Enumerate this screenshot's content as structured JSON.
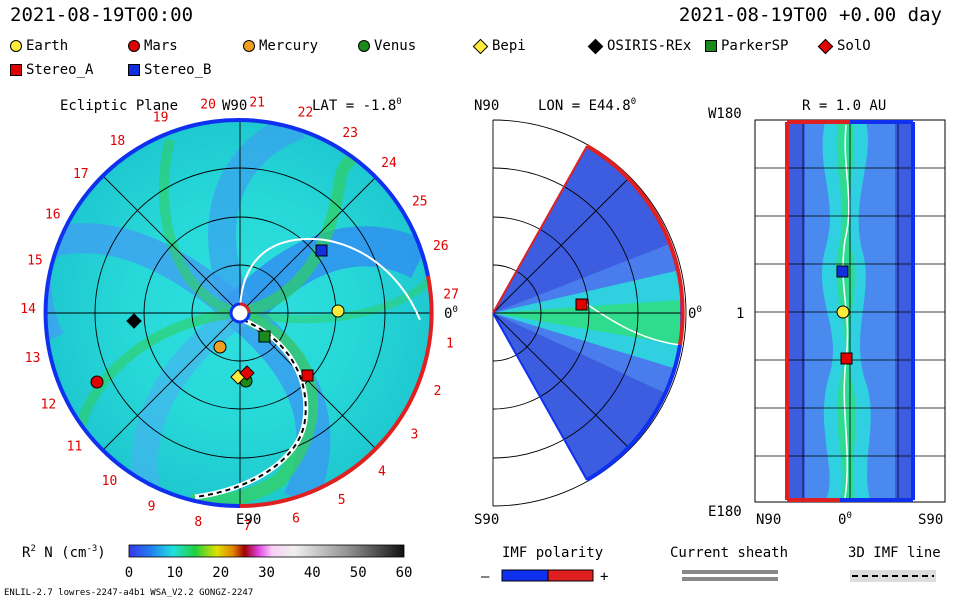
{
  "header": {
    "left_time": "2021-08-19T00:00",
    "right_time": "2021-08-19T00 +0.00 day"
  },
  "legend": {
    "items": [
      {
        "label": "Earth",
        "shape": "circle",
        "color": "#ffeb3b"
      },
      {
        "label": "Mars",
        "shape": "circle",
        "color": "#e00000"
      },
      {
        "label": "Mercury",
        "shape": "circle",
        "color": "#f0a020"
      },
      {
        "label": "Venus",
        "shape": "circle",
        "color": "#1a8a1a"
      },
      {
        "label": "Bepi",
        "shape": "diamond",
        "color": "#ffeb3b"
      },
      {
        "label": "OSIRIS-REx",
        "shape": "diamond",
        "color": "#000000"
      },
      {
        "label": "ParkerSP",
        "shape": "square",
        "color": "#1a8a1a"
      },
      {
        "label": "SolO",
        "shape": "diamond",
        "color": "#e00000"
      },
      {
        "label": "Stereo_A",
        "shape": "square",
        "color": "#e00000"
      },
      {
        "label": "Stereo_B",
        "shape": "square",
        "color": "#1030e0"
      }
    ]
  },
  "chart_data": [
    {
      "type": "polar",
      "title": "Ecliptic Plane",
      "top_label": "W90",
      "lat_label": "LAT = -1.8",
      "lat_sup": "0",
      "bottom_label": "E90",
      "right_label": "0",
      "right_sup": "0",
      "carrington_ticks": [
        "1",
        "2",
        "3",
        "4",
        "5",
        "6",
        "7",
        "8",
        "9",
        "10",
        "11",
        "12",
        "13",
        "14",
        "15",
        "16",
        "17",
        "18",
        "19",
        "20",
        "21",
        "22",
        "23",
        "24",
        "25",
        "26",
        "27"
      ]
    },
    {
      "type": "meridional",
      "top_label": "N90",
      "lon_label": "LON = E44.8",
      "lon_sup": "0",
      "bottom_label": "S90",
      "right_label": "0",
      "right_sup": "0"
    },
    {
      "type": "latlon",
      "title": "R = 1.0 AU",
      "y_top": "W180",
      "y_mid": "1",
      "y_bottom": "E180",
      "x_left": "N90",
      "x_mid": "0",
      "x_mid_sup": "0",
      "x_right": "S90"
    }
  ],
  "colorbar": {
    "label_pre": "R",
    "label_sup": "2",
    "label_post": " N (cm",
    "label_sup2": "-3",
    "label_close": ")",
    "ticks": [
      "0",
      "10",
      "20",
      "30",
      "40",
      "50",
      "60"
    ],
    "min": 0,
    "max": 60
  },
  "imf": {
    "title": "IMF polarity",
    "minus": "–",
    "plus": "+"
  },
  "sheath": {
    "title": "Current sheath"
  },
  "imf3d": {
    "title": "3D IMF line"
  },
  "footer": {
    "left": "ENLIL-2.7 lowres-2247-a4b1 WSA_V2.2 GONGZ-2247"
  }
}
